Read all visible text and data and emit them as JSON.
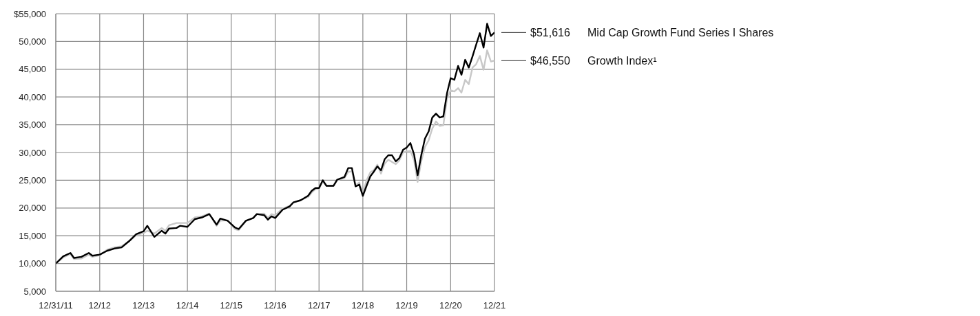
{
  "chart_data": {
    "type": "line",
    "x": [
      "2011-12",
      "2012-02",
      "2012-04",
      "2012-05",
      "2012-07",
      "2012-09",
      "2012-10",
      "2012-12",
      "2013-02",
      "2013-04",
      "2013-06",
      "2013-08",
      "2013-10",
      "2013-12",
      "2014-01",
      "2014-03",
      "2014-05",
      "2014-06",
      "2014-07",
      "2014-09",
      "2014-10",
      "2014-12",
      "2015-02",
      "2015-04",
      "2015-06",
      "2015-08",
      "2015-09",
      "2015-11",
      "2016-01",
      "2016-02",
      "2016-04",
      "2016-06",
      "2016-07",
      "2016-09",
      "2016-10",
      "2016-11",
      "2016-12",
      "2017-02",
      "2017-04",
      "2017-05",
      "2017-07",
      "2017-09",
      "2017-10",
      "2017-11",
      "2017-12",
      "2018-01",
      "2018-02",
      "2018-04",
      "2018-05",
      "2018-07",
      "2018-08",
      "2018-09",
      "2018-10",
      "2018-11",
      "2018-12",
      "2019-01",
      "2019-02",
      "2019-03",
      "2019-04",
      "2019-05",
      "2019-06",
      "2019-07",
      "2019-08",
      "2019-09",
      "2019-10",
      "2019-11",
      "2019-12",
      "2020-01",
      "2020-02",
      "2020-03",
      "2020-04",
      "2020-05",
      "2020-06",
      "2020-07",
      "2020-08",
      "2020-09",
      "2020-10",
      "2020-11",
      "2020-12",
      "2021-01",
      "2021-02",
      "2021-03",
      "2021-04",
      "2021-05",
      "2021-06",
      "2021-07",
      "2021-08",
      "2021-09",
      "2021-10",
      "2021-11",
      "2021-12"
    ],
    "series": [
      {
        "name": "Mid Cap Growth Fund Series I Shares",
        "color": "#000000",
        "values": [
          10000,
          11300,
          11900,
          11000,
          11200,
          11900,
          11400,
          11600,
          12300,
          12700,
          12900,
          14000,
          15300,
          15800,
          16800,
          14800,
          15900,
          15400,
          16300,
          16400,
          16800,
          16600,
          18000,
          18300,
          18900,
          17000,
          18100,
          17700,
          16500,
          16200,
          17700,
          18200,
          18900,
          18700,
          17900,
          18500,
          18200,
          19700,
          20300,
          21000,
          21400,
          22200,
          23100,
          23600,
          23600,
          25000,
          24000,
          24000,
          25100,
          25600,
          27200,
          27200,
          23900,
          24200,
          22200,
          24000,
          25700,
          26500,
          27500,
          26800,
          28800,
          29500,
          29500,
          28400,
          29000,
          30500,
          30900,
          31700,
          29600,
          25900,
          29600,
          32500,
          33800,
          36300,
          37000,
          36300,
          36500,
          40700,
          43400,
          43100,
          45600,
          44000,
          46700,
          45300,
          47300,
          49400,
          51500,
          48900,
          53200,
          51000,
          51616
        ]
      },
      {
        "name": "Growth Index¹",
        "color": "#c8c8c8",
        "values": [
          10000,
          11100,
          11700,
          10800,
          10900,
          11600,
          11200,
          11500,
          12500,
          12900,
          13100,
          14000,
          15100,
          15500,
          15900,
          15400,
          16400,
          15900,
          16900,
          17300,
          17300,
          17300,
          18300,
          18500,
          19000,
          16800,
          17700,
          17800,
          16200,
          16000,
          17700,
          18200,
          18900,
          19000,
          18200,
          18900,
          18700,
          19900,
          20400,
          21000,
          21400,
          22000,
          22800,
          23400,
          23500,
          24800,
          24000,
          24000,
          25000,
          25400,
          26500,
          26600,
          24100,
          24600,
          22600,
          25000,
          26400,
          26800,
          27800,
          26200,
          28000,
          28700,
          28300,
          27900,
          28600,
          30000,
          30200,
          30300,
          28600,
          24700,
          28500,
          31000,
          32200,
          34300,
          35600,
          34800,
          34900,
          39700,
          41200,
          41000,
          41600,
          40800,
          43100,
          42300,
          45300,
          45900,
          47400,
          44900,
          48400,
          46400,
          46550
        ]
      }
    ],
    "annotations": [
      "$51,616",
      "$46,550"
    ],
    "xlim": [
      "2011-12",
      "2021-12"
    ],
    "xticks": [
      {
        "value": "2011-12",
        "label": "12/31/11"
      },
      {
        "value": "2012-12",
        "label": "12/12"
      },
      {
        "value": "2013-12",
        "label": "12/13"
      },
      {
        "value": "2014-12",
        "label": "12/14"
      },
      {
        "value": "2015-12",
        "label": "12/15"
      },
      {
        "value": "2016-12",
        "label": "12/16"
      },
      {
        "value": "2017-12",
        "label": "12/17"
      },
      {
        "value": "2018-12",
        "label": "12/18"
      },
      {
        "value": "2019-12",
        "label": "12/19"
      },
      {
        "value": "2020-12",
        "label": "12/20"
      },
      {
        "value": "2021-12",
        "label": "12/21"
      }
    ],
    "ylim": [
      5000,
      55000
    ],
    "yticks": [
      {
        "value": 5000,
        "label": "5,000"
      },
      {
        "value": 10000,
        "label": "10,000"
      },
      {
        "value": 15000,
        "label": "15,000"
      },
      {
        "value": 20000,
        "label": "20,000"
      },
      {
        "value": 25000,
        "label": "25,000"
      },
      {
        "value": 30000,
        "label": "30,000"
      },
      {
        "value": 35000,
        "label": "35,000"
      },
      {
        "value": 40000,
        "label": "40,000"
      },
      {
        "value": 45000,
        "label": "45,000"
      },
      {
        "value": 50000,
        "label": "50,000"
      },
      {
        "value": 55000,
        "label": "$55,000"
      }
    ],
    "grid": true,
    "marker": "none",
    "line_style": "solid",
    "legend": "right"
  }
}
